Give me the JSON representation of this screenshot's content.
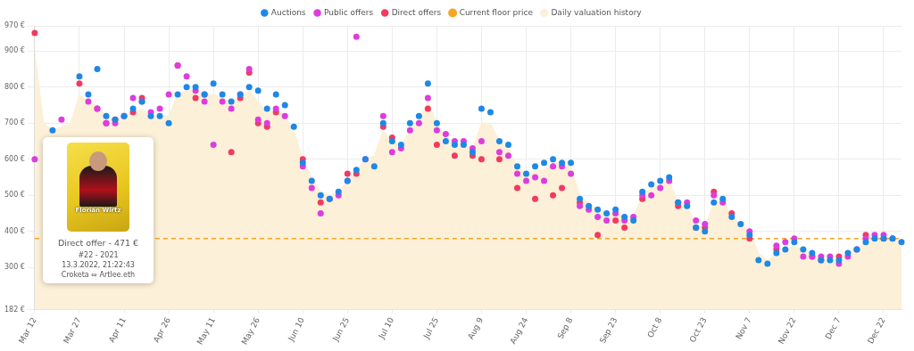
{
  "chart_data": {
    "type": "scatter",
    "legend": "top",
    "grid": true,
    "categories": [
      "Mar 12",
      null,
      null,
      null,
      null,
      "Mar 27",
      null,
      null,
      null,
      null,
      "Apr 11",
      null,
      null,
      null,
      null,
      "Apr 26",
      null,
      null,
      null,
      null,
      "May 11",
      null,
      null,
      null,
      null,
      "May 26",
      null,
      null,
      null,
      null,
      "Jun 10",
      null,
      null,
      null,
      null,
      "Jun 25",
      null,
      null,
      null,
      null,
      "Jul 10",
      null,
      null,
      null,
      null,
      "Jul 25",
      null,
      null,
      null,
      null,
      "Aug 9",
      null,
      null,
      null,
      null,
      "Aug 24",
      null,
      null,
      null,
      null,
      "Sep 8",
      null,
      null,
      null,
      null,
      "Sep 23",
      null,
      null,
      null,
      null,
      "Oct 8",
      null,
      null,
      null,
      null,
      "Oct 23",
      null,
      null,
      null,
      null,
      "Nov 7",
      null,
      null,
      null,
      null,
      "Nov 22",
      null,
      null,
      null,
      null,
      "Dec 7",
      null,
      null,
      null,
      null,
      "Dec 22",
      null,
      null
    ],
    "ylim": [
      182,
      970
    ],
    "yticks": [
      {
        "value": 182,
        "label": "182 €"
      },
      {
        "value": 300,
        "label": "300 €"
      },
      {
        "value": 400,
        "label": "400 €"
      },
      {
        "value": 500,
        "label": "500 €"
      },
      {
        "value": 600,
        "label": "600 €"
      },
      {
        "value": 700,
        "label": "700 €"
      },
      {
        "value": 800,
        "label": "800 €"
      },
      {
        "value": 900,
        "label": "900 €"
      },
      {
        "value": 970,
        "label": "970 €"
      }
    ],
    "series": [
      {
        "name": "Auctions",
        "type": "scatter",
        "marker": "circle",
        "color": "#1e88e5",
        "values": [
          null,
          null,
          680,
          null,
          null,
          830,
          780,
          850,
          720,
          710,
          720,
          740,
          760,
          720,
          720,
          700,
          780,
          800,
          800,
          780,
          810,
          780,
          760,
          780,
          800,
          790,
          740,
          780,
          750,
          690,
          590,
          540,
          500,
          490,
          510,
          540,
          570,
          600,
          580,
          700,
          650,
          640,
          700,
          720,
          810,
          700,
          650,
          640,
          640,
          620,
          740,
          730,
          650,
          640,
          580,
          560,
          580,
          590,
          600,
          590,
          590,
          490,
          470,
          460,
          450,
          460,
          440,
          430,
          510,
          530,
          540,
          550,
          480,
          470,
          410,
          400,
          480,
          490,
          440,
          420,
          390,
          320,
          310,
          340,
          350,
          370,
          350,
          340,
          320,
          320,
          320,
          340,
          350,
          370,
          380,
          380,
          380,
          370
        ]
      },
      {
        "name": "Public offers",
        "type": "scatter",
        "marker": "circle",
        "color": "#dc3ddc",
        "values": [
          600,
          null,
          null,
          710,
          null,
          null,
          760,
          740,
          700,
          700,
          720,
          770,
          760,
          730,
          740,
          780,
          860,
          830,
          790,
          760,
          640,
          760,
          740,
          780,
          850,
          710,
          700,
          740,
          720,
          null,
          580,
          520,
          450,
          490,
          500,
          540,
          940,
          600,
          null,
          720,
          620,
          630,
          680,
          700,
          770,
          680,
          670,
          650,
          650,
          630,
          650,
          null,
          620,
          610,
          560,
          540,
          550,
          540,
          580,
          580,
          560,
          470,
          460,
          440,
          430,
          450,
          430,
          440,
          500,
          500,
          520,
          540,
          480,
          480,
          430,
          420,
          500,
          480,
          null,
          null,
          400,
          null,
          null,
          360,
          370,
          380,
          330,
          330,
          330,
          330,
          310,
          330,
          350,
          380,
          390,
          390,
          380,
          null
        ]
      },
      {
        "name": "Direct offers",
        "type": "scatter",
        "marker": "circle",
        "color": "#f23a60",
        "values": [
          950,
          null,
          null,
          null,
          null,
          810,
          null,
          740,
          700,
          710,
          null,
          730,
          770,
          null,
          null,
          null,
          860,
          null,
          770,
          780,
          null,
          null,
          620,
          770,
          840,
          700,
          690,
          730,
          null,
          null,
          600,
          null,
          480,
          null,
          null,
          560,
          560,
          null,
          null,
          690,
          660,
          null,
          null,
          null,
          740,
          640,
          null,
          610,
          null,
          610,
          600,
          null,
          600,
          null,
          520,
          null,
          490,
          null,
          500,
          520,
          null,
          480,
          null,
          390,
          null,
          430,
          410,
          null,
          490,
          null,
          null,
          null,
          470,
          null,
          410,
          410,
          510,
          null,
          450,
          null,
          380,
          null,
          null,
          350,
          null,
          null,
          null,
          330,
          320,
          null,
          330,
          null,
          null,
          390,
          null,
          380,
          null,
          null
        ]
      },
      {
        "name": "Current floor price",
        "type": "line",
        "line_style": "dashed",
        "color": "#f5a623",
        "values": [
          380,
          380,
          380,
          380,
          380,
          380,
          380,
          380,
          380,
          380,
          380,
          380,
          380,
          380,
          380,
          380,
          380,
          380,
          380,
          380,
          380,
          380,
          380,
          380,
          380,
          380,
          380,
          380,
          380,
          380,
          380,
          380,
          380,
          380,
          380,
          380,
          380,
          380,
          380,
          380,
          380,
          380,
          380,
          380,
          380,
          380,
          380,
          380,
          380,
          380,
          380,
          380,
          380,
          380,
          380,
          380,
          380,
          380,
          380,
          380,
          380,
          380,
          380,
          380,
          380,
          380,
          380,
          380,
          380,
          380,
          380,
          380,
          380,
          380,
          380,
          380,
          380,
          380,
          380,
          380,
          380,
          380,
          380,
          380,
          380,
          380,
          380,
          380,
          380,
          380,
          380,
          380,
          380,
          380,
          380,
          380,
          380,
          380
        ]
      },
      {
        "name": "Daily valuation history",
        "type": "area",
        "color": "#fcf0d8",
        "values": [
          900,
          700,
          680,
          690,
          700,
          780,
          760,
          750,
          720,
          710,
          720,
          730,
          740,
          720,
          720,
          720,
          780,
          790,
          790,
          780,
          780,
          770,
          760,
          770,
          790,
          760,
          730,
          740,
          720,
          680,
          600,
          550,
          510,
          500,
          510,
          540,
          570,
          600,
          610,
          680,
          650,
          640,
          680,
          710,
          760,
          700,
          660,
          650,
          640,
          630,
          700,
          700,
          650,
          630,
          580,
          560,
          570,
          570,
          590,
          590,
          580,
          500,
          480,
          460,
          450,
          450,
          440,
          440,
          500,
          520,
          530,
          540,
          480,
          470,
          420,
          410,
          480,
          490,
          440,
          420,
          400,
          340,
          320,
          340,
          350,
          360,
          350,
          340,
          320,
          320,
          320,
          340,
          350,
          370,
          380,
          380,
          380,
          370
        ]
      }
    ],
    "annotations": {
      "card": "Florian Wirtz",
      "lines": [
        "Direct offer - 471 €",
        "#22 - 2021",
        "13.3.2022, 21:22:43",
        "Croketa ⇔ Artlee.eth"
      ]
    }
  }
}
